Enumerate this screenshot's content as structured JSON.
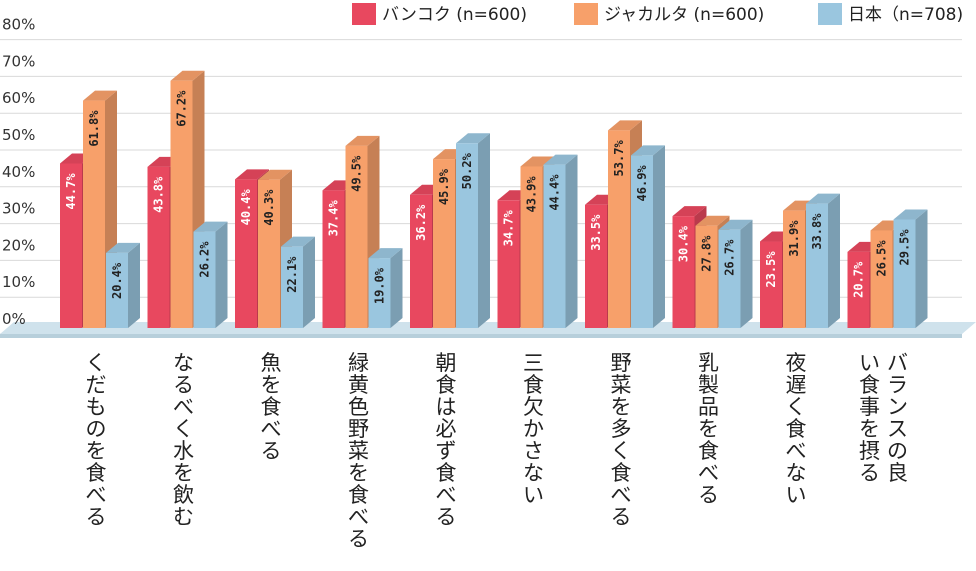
{
  "chart_data": {
    "type": "bar",
    "title": "",
    "xlabel": "",
    "ylabel": "",
    "ylim": [
      0,
      80
    ],
    "y_ticks": [
      "0%",
      "10%",
      "20%",
      "30%",
      "40%",
      "50%",
      "60%",
      "70%",
      "80%"
    ],
    "grid": true,
    "legend_position": "top-right",
    "categories": [
      "くだものを食べる",
      "なるべく水を飲む",
      "魚を食べる",
      "緑黄色野菜を食べる",
      "朝食は必ず食べる",
      "三食欠かさない",
      "野菜を多く食べる",
      "乳製品を食べる",
      "夜遅く食べない",
      "バランスの良い食事を摂る"
    ],
    "series": [
      {
        "name": "バンコク (n=600)",
        "color": "#e8485f",
        "values": [
          44.7,
          43.8,
          40.4,
          37.4,
          36.2,
          34.7,
          33.5,
          30.4,
          23.5,
          20.7
        ],
        "labels": [
          "44.7%",
          "43.8%",
          "40.4%",
          "37.4%",
          "36.2%",
          "34.7%",
          "33.5%",
          "30.4%",
          "23.5%",
          "20.7%"
        ]
      },
      {
        "name": "ジャカルタ (n=600)",
        "color": "#f7a06a",
        "values": [
          61.8,
          67.2,
          40.3,
          49.5,
          45.9,
          43.9,
          53.7,
          27.8,
          31.9,
          26.5
        ],
        "labels": [
          "61.8%",
          "67.2%",
          "40.3%",
          "49.5%",
          "45.9%",
          "43.9%",
          "53.7%",
          "27.8%",
          "31.9%",
          "26.5%"
        ]
      },
      {
        "name": "日本（n=708)",
        "color": "#9ac6df",
        "values": [
          20.4,
          26.2,
          22.1,
          19.0,
          50.2,
          44.4,
          46.9,
          26.7,
          33.8,
          29.5
        ],
        "labels": [
          "20.4%",
          "26.2%",
          "22.1%",
          "19.0%",
          "50.2%",
          "44.4%",
          "46.9%",
          "26.7%",
          "33.8%",
          "29.5%"
        ]
      }
    ]
  }
}
